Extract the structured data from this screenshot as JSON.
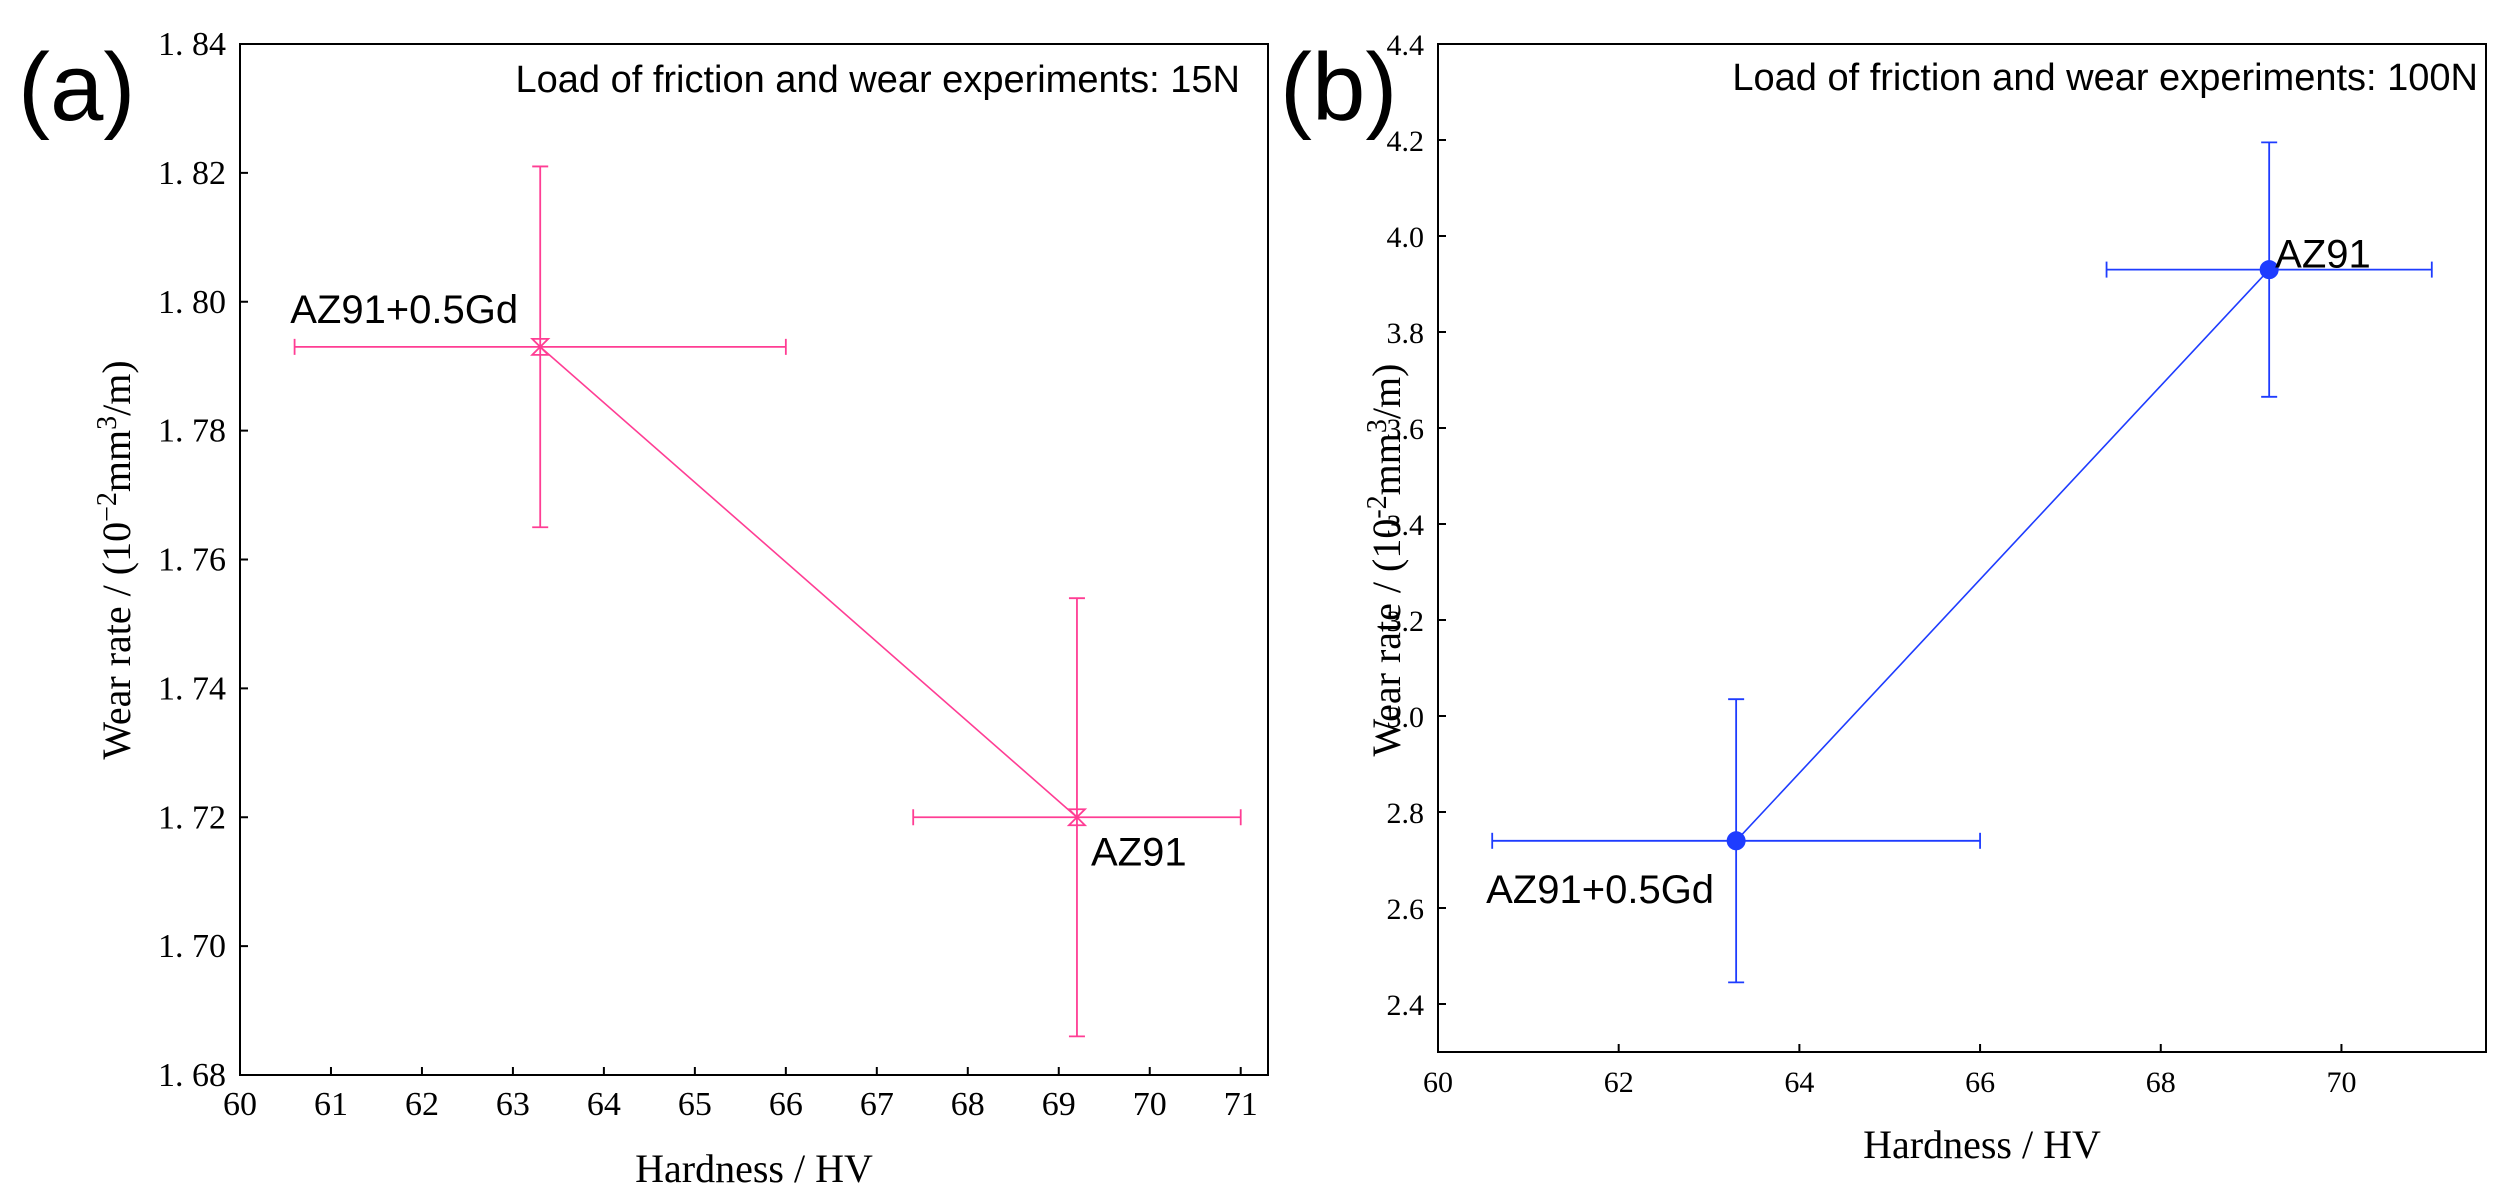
{
  "colors": {
    "panel_a": "#ff3d94",
    "panel_b": "#1e3cff",
    "axis": "#000000"
  },
  "chart_data": [
    {
      "panel_label": "(a)",
      "type": "scatter",
      "title": "Load of friction and wear experiments: 15N",
      "xlabel": "Hardness / HV",
      "ylabel_prefix": "Wear rate / (10",
      "ylabel_exp1": "−2",
      "ylabel_mid": "mm",
      "ylabel_exp2": "3",
      "ylabel_suffix": "/m)",
      "xlim": [
        60,
        71.3
      ],
      "ylim": [
        1.68,
        1.84
      ],
      "xticks": [
        60,
        61,
        62,
        63,
        64,
        65,
        66,
        67,
        68,
        69,
        70,
        71
      ],
      "xtick_labels": [
        "60",
        "61",
        "62",
        "63",
        "64",
        "65",
        "66",
        "67",
        "68",
        "69",
        "70",
        "71"
      ],
      "yticks": [
        1.68,
        1.7,
        1.72,
        1.74,
        1.76,
        1.78,
        1.8,
        1.82,
        1.84
      ],
      "ytick_labels": [
        "1. 68",
        "1. 70",
        "1. 72",
        "1. 74",
        "1. 76",
        "1. 78",
        "1. 80",
        "1. 82",
        "1. 84"
      ],
      "marker": "hourglass",
      "connect_points": true,
      "points": [
        {
          "label": "AZ91+0.5Gd",
          "x": 63.3,
          "y": 1.793,
          "xerr": [
            60.6,
            66.0
          ],
          "yerr": [
            1.765,
            1.821
          ],
          "label_pos": "above-left"
        },
        {
          "label": "AZ91",
          "x": 69.2,
          "y": 1.72,
          "xerr": [
            67.4,
            71.0
          ],
          "yerr": [
            1.686,
            1.754
          ],
          "label_pos": "below-right"
        }
      ]
    },
    {
      "panel_label": "(b)",
      "type": "scatter",
      "title": "Load of friction and wear experiments: 100N",
      "xlabel": "Hardness / HV",
      "ylabel_prefix": "Wear rate / (10",
      "ylabel_exp1": "-2",
      "ylabel_mid": "mm",
      "ylabel_exp2": "3",
      "ylabel_suffix": "/m)",
      "xlim": [
        60,
        71.6
      ],
      "ylim": [
        2.3,
        4.4
      ],
      "xticks": [
        60,
        62,
        64,
        66,
        68,
        70
      ],
      "xtick_labels": [
        "60",
        "62",
        "64",
        "66",
        "68",
        "70"
      ],
      "yticks": [
        2.4,
        2.6,
        2.8,
        3.0,
        3.2,
        3.4,
        3.6,
        3.8,
        4.0,
        4.2,
        4.4
      ],
      "ytick_labels": [
        "2.4",
        "2.6",
        "2.8",
        "3.0",
        "3.2",
        "3.4",
        "3.6",
        "3.8",
        "4.0",
        "4.2",
        "4.4"
      ],
      "marker": "circle",
      "connect_points": true,
      "points": [
        {
          "label": "AZ91+0.5Gd",
          "x": 63.3,
          "y": 2.74,
          "xerr": [
            60.6,
            66.0
          ],
          "yerr": [
            2.445,
            3.035
          ],
          "label_pos": "below-left"
        },
        {
          "label": "AZ91",
          "x": 69.2,
          "y": 3.93,
          "xerr": [
            67.4,
            71.0
          ],
          "yerr": [
            3.665,
            4.195
          ],
          "label_pos": "right"
        }
      ]
    }
  ]
}
